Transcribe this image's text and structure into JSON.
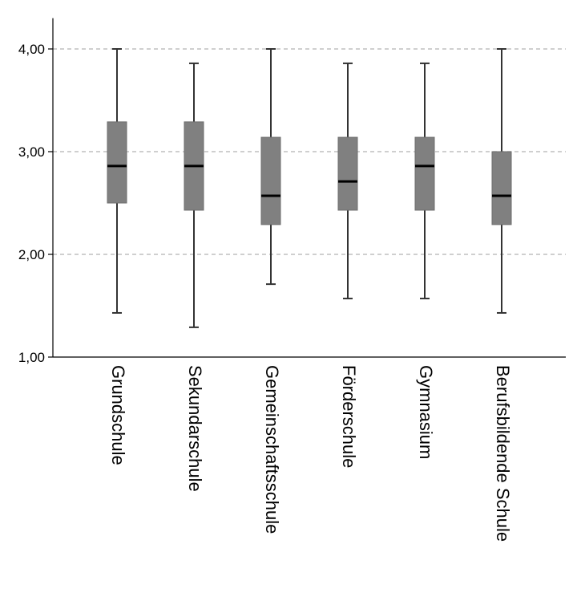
{
  "chart_data": {
    "type": "boxplot",
    "title": "",
    "xlabel": "",
    "ylabel": "",
    "ylim": [
      1.0,
      4.3
    ],
    "y_ticks": [
      {
        "value": 1.0,
        "label": "1,00"
      },
      {
        "value": 2.0,
        "label": "2,00"
      },
      {
        "value": 3.0,
        "label": "3,00"
      },
      {
        "value": 4.0,
        "label": "4,00"
      }
    ],
    "gridlines": [
      2.0,
      3.0,
      4.0
    ],
    "categories": [
      "Grundschule",
      "Sekundarschule",
      "Gemeinschaftsschule",
      "Förderschule",
      "Gymnasium",
      "Berufsbildende Schule"
    ],
    "boxes": [
      {
        "category": "Grundschule",
        "min": 1.43,
        "q1": 2.5,
        "median": 2.86,
        "q3": 3.29,
        "max": 4.0
      },
      {
        "category": "Sekundarschule",
        "min": 1.29,
        "q1": 2.43,
        "median": 2.86,
        "q3": 3.29,
        "max": 3.86
      },
      {
        "category": "Gemeinschaftsschule",
        "min": 1.71,
        "q1": 2.29,
        "median": 2.57,
        "q3": 3.14,
        "max": 4.0
      },
      {
        "category": "Förderschule",
        "min": 1.57,
        "q1": 2.43,
        "median": 2.71,
        "q3": 3.14,
        "max": 3.86
      },
      {
        "category": "Gymnasium",
        "min": 1.57,
        "q1": 2.43,
        "median": 2.86,
        "q3": 3.14,
        "max": 3.86
      },
      {
        "category": "Berufsbildende Schule",
        "min": 1.43,
        "q1": 2.29,
        "median": 2.57,
        "q3": 3.0,
        "max": 4.0
      }
    ],
    "colors": {
      "box": "#808080",
      "median": "#000000",
      "whisker": "#333333",
      "grid": "#bfbfbf",
      "axis": "#000000"
    }
  }
}
